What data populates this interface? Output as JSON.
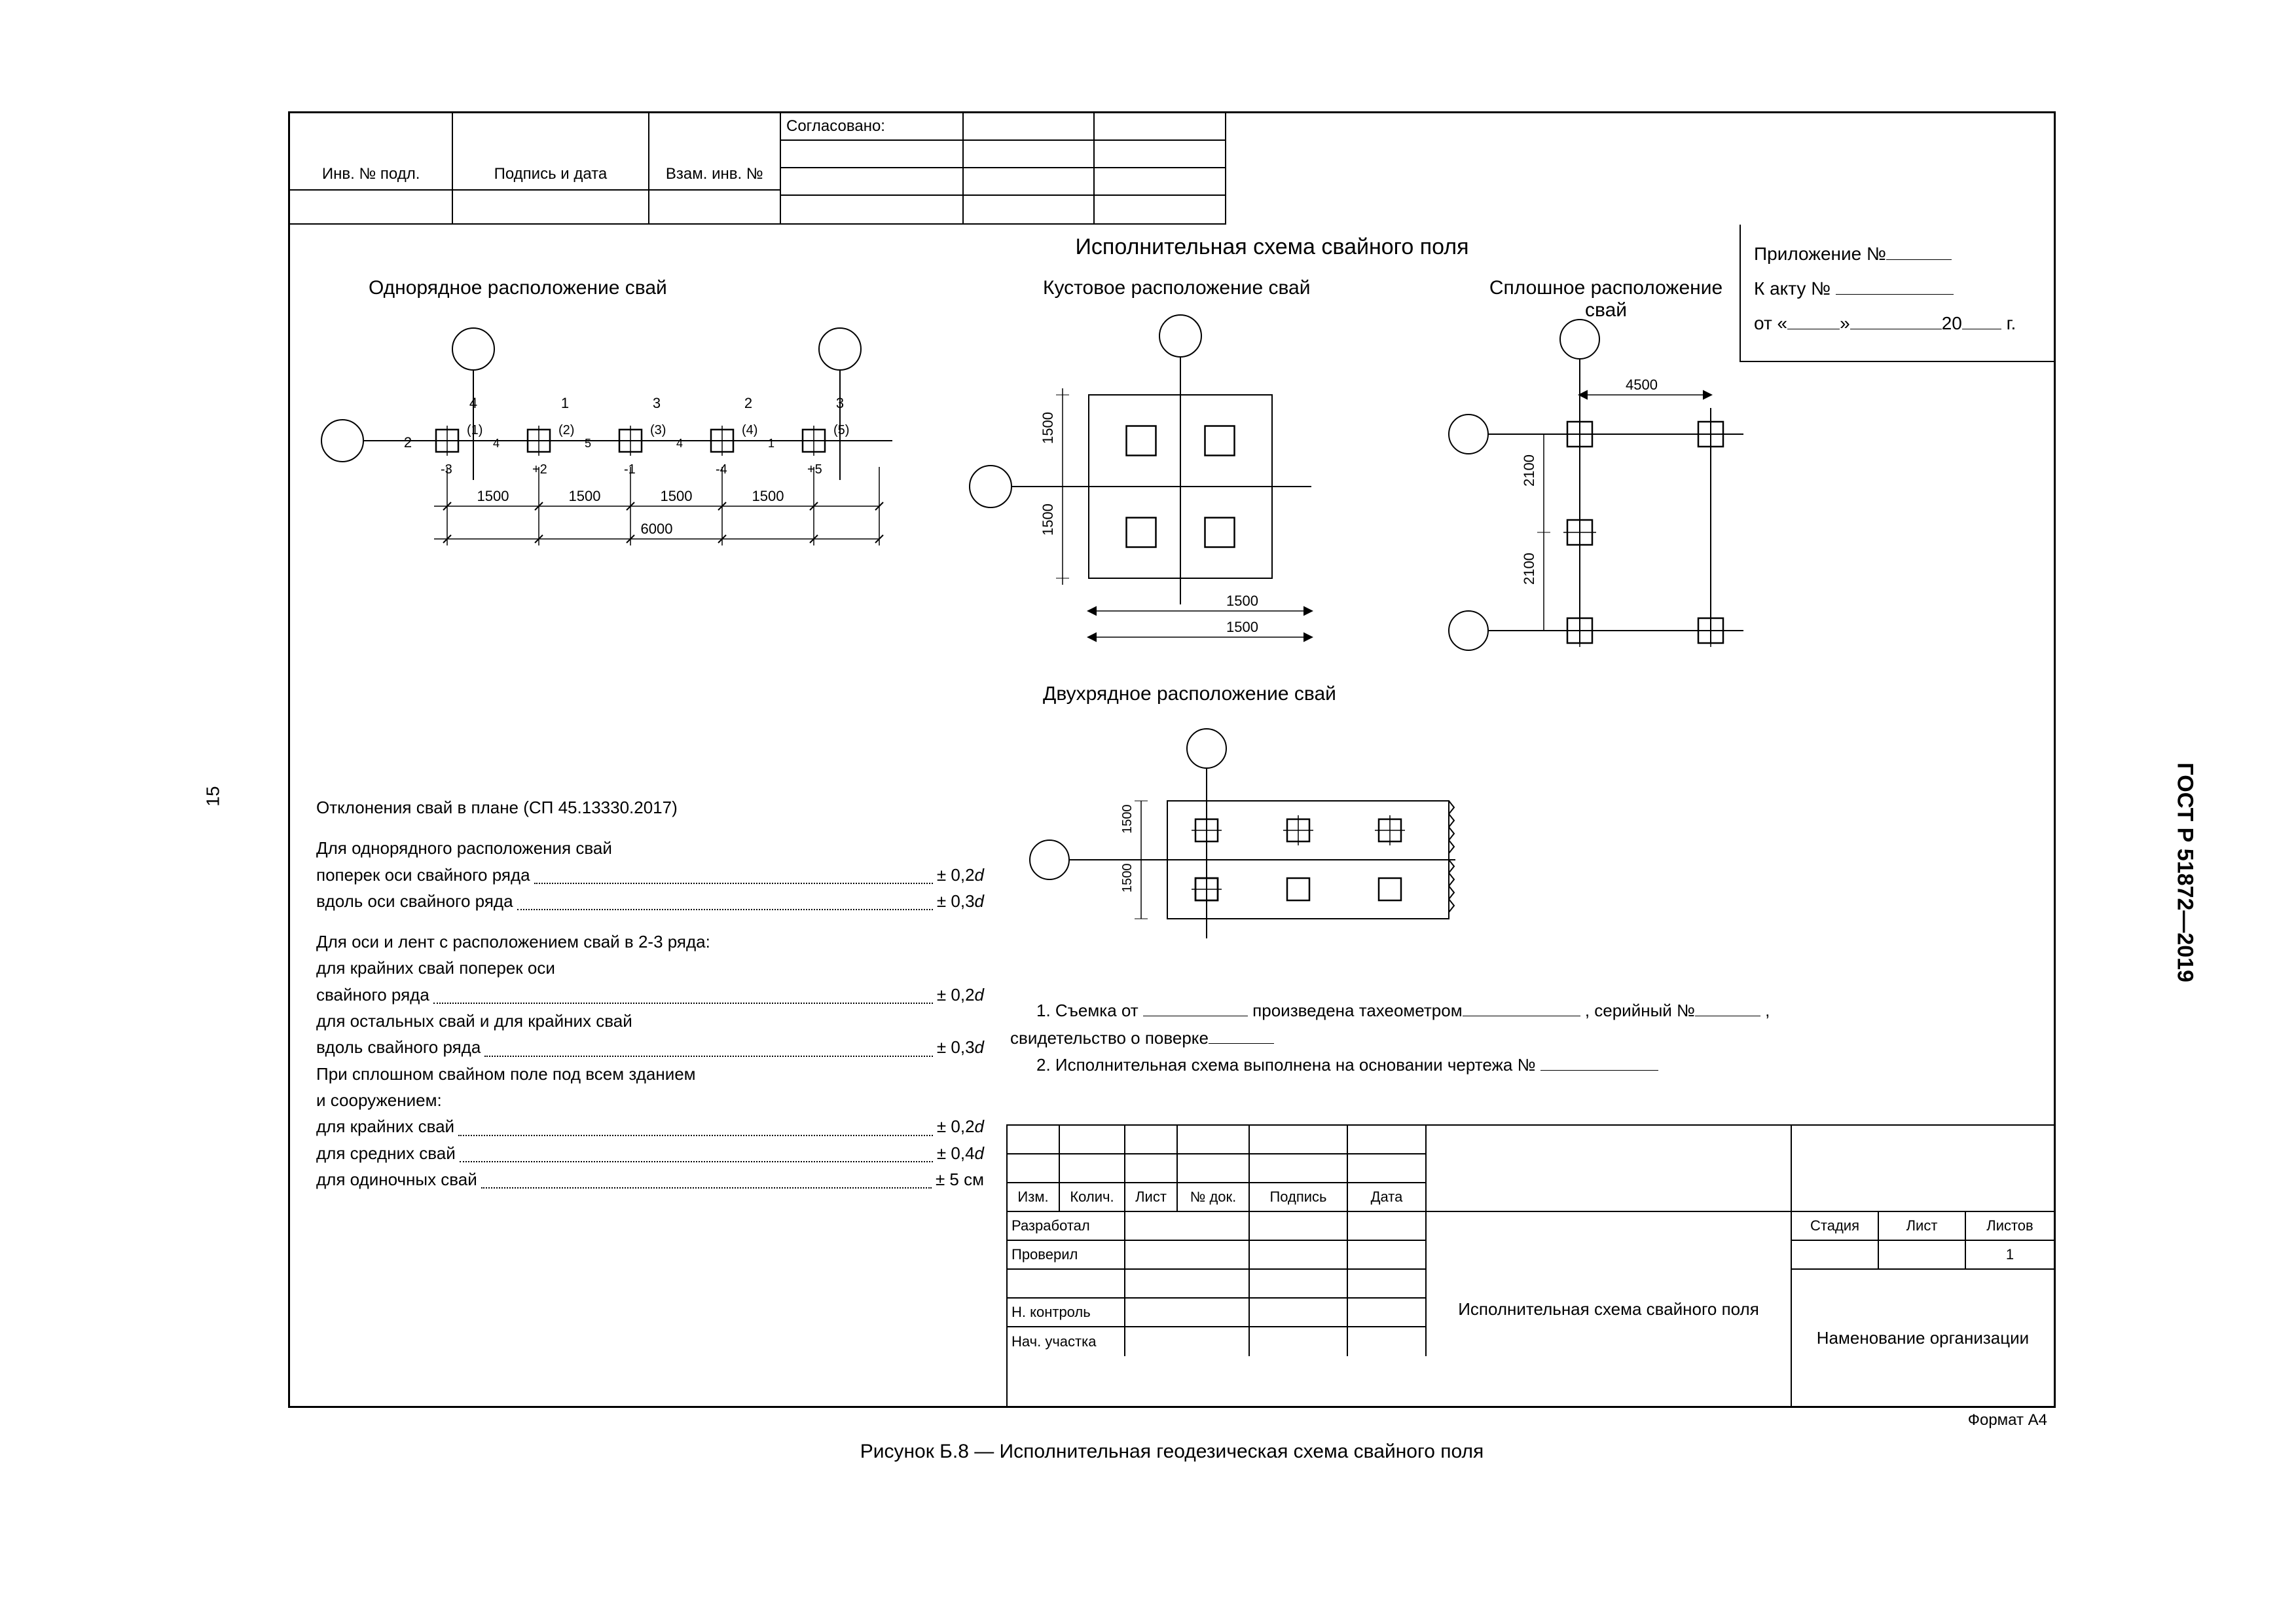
{
  "page_number": "15",
  "gost": "ГОСТ Р 51872—2019",
  "topleft": {
    "c1": "Инв. № подл.",
    "c2": "Подпись и дата",
    "c3": "Взам. инв. №"
  },
  "approval": "Согласовано:",
  "main_title": "Исполнительная схема свайного поля",
  "sub1": "Однорядное расположение свай",
  "sub2": "Кустовое расположение свай",
  "sub3": "Сплошное расположение свай",
  "sub4": "Двухрядное расположение свай",
  "appendix": {
    "l1a": "Приложение №",
    "l2a": "К акту №",
    "l3a": "от  «",
    "l3b": "»",
    "l3c": "20",
    "l3d": "г."
  },
  "diag_single": {
    "dims": [
      "1500",
      "1500",
      "1500",
      "1500"
    ],
    "total": "6000",
    "top_labels": [
      "4",
      "1",
      "3",
      "2",
      "3"
    ],
    "paren": [
      "(1)",
      "(2)",
      "(3)",
      "(4)",
      "(5)"
    ],
    "mid_small": [
      "4",
      "5",
      "4",
      "1"
    ],
    "bot": [
      "-3",
      "+2",
      "-1",
      "-4",
      "+5"
    ],
    "left2": "2"
  },
  "diag_cluster": {
    "v": "1500",
    "h": "1500"
  },
  "diag_solid": {
    "h": "4500",
    "v": "2100"
  },
  "diag_two": {
    "v": "1500"
  },
  "dev": {
    "title": "Отклонения свай в плане (СП 45.13330.2017)",
    "p1": "Для однорядного расположения свай",
    "r1a": "поперек оси свайного ряда",
    "r1b": "± 0,2",
    "r2a": "вдоль оси свайного ряда",
    "r2b": "± 0,3",
    "p2": "Для оси и лент с расположением свай в 2-3 ряда:",
    "r3a": "для крайних свай поперек оси",
    "r3b": "свайного ряда",
    "r3c": "± 0,2",
    "r4a": "для остальных свай и для крайних свай",
    "r4b": "вдоль свайного ряда",
    "r4c": "± 0,3",
    "p3": "При сплошном свайном поле под всем зданием",
    "p3b": "и сооружением:",
    "r5a": "для крайних свай",
    "r5b": "± 0,2",
    "r6a": "для средних свай",
    "r6b": "± 0,4",
    "r7a": "для одиночных свай",
    "r7b": "± 5 см",
    "d": "d"
  },
  "notes": {
    "n1a": "1. Съемка от",
    "n1b": "произведена тахеометром",
    "n1c": ", серийный №",
    "n1d": ",",
    "n1e": "свидетельство о поверке",
    "n2": "2. Исполнительная схема выполнена на основании чертежа №"
  },
  "tb": {
    "h": [
      "Изм.",
      "Колич.",
      "Лист",
      "№ док.",
      "Подпись",
      "Дата"
    ],
    "rows": [
      "Разработал",
      "Проверил",
      "",
      "Н. контроль",
      "Нач. участка"
    ],
    "center": "Исполнительная схема свайного поля",
    "stage": "Стадия",
    "sheet": "Лист",
    "sheets": "Листов",
    "sheets_v": "1",
    "org": "Наменование организации"
  },
  "caption": "Рисунок Б.8 — Исполнительная геодезическая схема свайного поля",
  "format": "Формат А4"
}
